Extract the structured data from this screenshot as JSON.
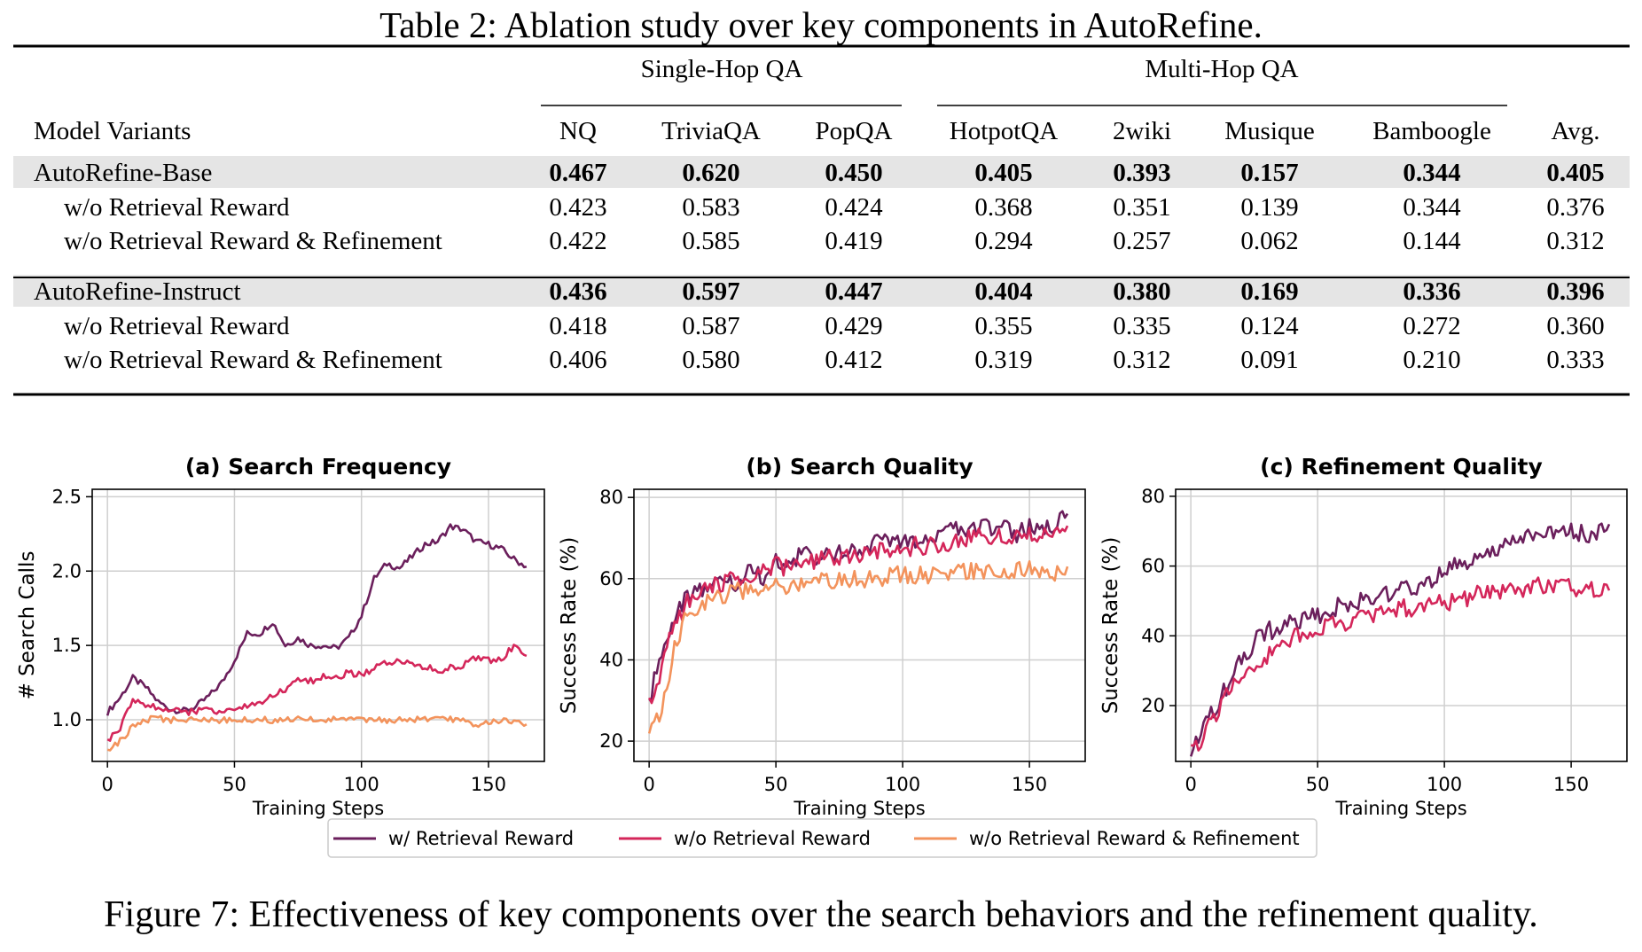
{
  "table": {
    "caption": "Table 2: Ablation study over key components in AutoRefine.",
    "group_headers": [
      "Single-Hop QA",
      "Multi-Hop QA"
    ],
    "columns": [
      "Model Variants",
      "NQ",
      "TriviaQA",
      "PopQA",
      "HotpotQA",
      "2wiki",
      "Musique",
      "Bamboogle",
      "Avg."
    ],
    "rows": [
      {
        "label": "AutoRefine-Base",
        "bold": true,
        "shaded": true,
        "indent": false,
        "values": [
          "0.467",
          "0.620",
          "0.450",
          "0.405",
          "0.393",
          "0.157",
          "0.344",
          "0.405"
        ]
      },
      {
        "label": "w/o Retrieval Reward",
        "bold": false,
        "shaded": false,
        "indent": true,
        "values": [
          "0.423",
          "0.583",
          "0.424",
          "0.368",
          "0.351",
          "0.139",
          "0.344",
          "0.376"
        ]
      },
      {
        "label": "w/o Retrieval Reward & Refinement",
        "bold": false,
        "shaded": false,
        "indent": true,
        "values": [
          "0.422",
          "0.585",
          "0.419",
          "0.294",
          "0.257",
          "0.062",
          "0.144",
          "0.312"
        ]
      },
      {
        "label": "AutoRefine-Instruct",
        "bold": true,
        "shaded": true,
        "indent": false,
        "values": [
          "0.436",
          "0.597",
          "0.447",
          "0.404",
          "0.380",
          "0.169",
          "0.336",
          "0.396"
        ]
      },
      {
        "label": "w/o Retrieval Reward",
        "bold": false,
        "shaded": false,
        "indent": true,
        "values": [
          "0.418",
          "0.587",
          "0.429",
          "0.355",
          "0.335",
          "0.124",
          "0.272",
          "0.360"
        ]
      },
      {
        "label": "w/o Retrieval Reward & Refinement",
        "bold": false,
        "shaded": false,
        "indent": true,
        "values": [
          "0.406",
          "0.580",
          "0.412",
          "0.319",
          "0.312",
          "0.091",
          "0.210",
          "0.333"
        ]
      }
    ]
  },
  "figure": {
    "caption": "Figure 7: Effectiveness of key components over the search behaviors and the refinement quality.",
    "legend": [
      "w/ Retrieval Reward",
      "w/o Retrieval Reward",
      "w/o Retrieval Reward & Refinement"
    ]
  },
  "colors": {
    "w_retrieval": "#6b1f5c",
    "wo_retrieval": "#d4265a",
    "wo_both": "#f3935c",
    "grid": "#cfcfcf",
    "shade": "#e5e5e5"
  },
  "chart_data": [
    {
      "type": "line",
      "title": "(a) Search Frequency",
      "xlabel": "Training Steps",
      "ylabel": "# Search Calls",
      "xlim": [
        -6,
        172
      ],
      "ylim": [
        0.72,
        2.55
      ],
      "xticks": [
        0,
        50,
        100,
        150
      ],
      "yticks": [
        1.0,
        1.5,
        2.0,
        2.5
      ],
      "ytick_labels": [
        "1.0",
        "1.5",
        "2.0",
        "2.5"
      ],
      "grid": true,
      "series": [
        {
          "name": "w/ Retrieval Reward",
          "x": [
            0,
            5,
            10,
            15,
            20,
            25,
            30,
            35,
            40,
            45,
            50,
            55,
            60,
            65,
            70,
            75,
            80,
            85,
            90,
            95,
            100,
            105,
            110,
            115,
            120,
            125,
            130,
            135,
            140,
            145,
            150,
            155,
            160,
            165
          ],
          "y": [
            1.05,
            1.15,
            1.28,
            1.22,
            1.12,
            1.07,
            1.06,
            1.09,
            1.16,
            1.25,
            1.4,
            1.58,
            1.58,
            1.66,
            1.5,
            1.55,
            1.5,
            1.5,
            1.48,
            1.55,
            1.7,
            1.95,
            2.05,
            2.02,
            2.1,
            2.18,
            2.2,
            2.3,
            2.28,
            2.2,
            2.18,
            2.15,
            2.08,
            2.03
          ]
        },
        {
          "name": "w/o Retrieval Reward",
          "x": [
            0,
            5,
            10,
            15,
            20,
            25,
            30,
            35,
            40,
            45,
            50,
            55,
            60,
            65,
            70,
            75,
            80,
            85,
            90,
            95,
            100,
            105,
            110,
            115,
            120,
            125,
            130,
            135,
            140,
            145,
            150,
            155,
            160,
            165
          ],
          "y": [
            0.85,
            0.95,
            1.12,
            1.1,
            1.08,
            1.07,
            1.05,
            1.06,
            1.06,
            1.06,
            1.07,
            1.09,
            1.11,
            1.16,
            1.2,
            1.26,
            1.26,
            1.29,
            1.28,
            1.32,
            1.3,
            1.35,
            1.38,
            1.4,
            1.37,
            1.36,
            1.33,
            1.35,
            1.37,
            1.42,
            1.4,
            1.4,
            1.5,
            1.43
          ]
        },
        {
          "name": "w/o Retrieval Reward & Refinement",
          "x": [
            0,
            5,
            10,
            15,
            20,
            25,
            30,
            35,
            40,
            45,
            50,
            55,
            60,
            65,
            70,
            75,
            80,
            85,
            90,
            95,
            100,
            105,
            110,
            115,
            120,
            125,
            130,
            135,
            140,
            145,
            150,
            155,
            160,
            165
          ],
          "y": [
            0.78,
            0.86,
            0.95,
            1.0,
            1.01,
            1.0,
            1.0,
            1.0,
            1.0,
            1.0,
            1.0,
            1.0,
            1.0,
            1.0,
            1.0,
            1.0,
            1.0,
            1.0,
            1.0,
            1.0,
            1.0,
            1.0,
            1.0,
            1.0,
            1.0,
            1.0,
            1.0,
            1.0,
            1.0,
            0.97,
            0.99,
            1.0,
            0.98,
            0.97
          ]
        }
      ]
    },
    {
      "type": "line",
      "title": "(b) Search Quality",
      "xlabel": "Training Steps",
      "ylabel": "Success Rate (%)",
      "xlim": [
        -6,
        172
      ],
      "ylim": [
        15,
        82
      ],
      "xticks": [
        0,
        50,
        100,
        150
      ],
      "yticks": [
        20,
        40,
        60,
        80
      ],
      "ytick_labels": [
        "20",
        "40",
        "60",
        "80"
      ],
      "grid": true,
      "series": [
        {
          "name": "w/ Retrieval Reward",
          "x": [
            0,
            5,
            10,
            15,
            20,
            25,
            30,
            35,
            40,
            45,
            50,
            55,
            60,
            65,
            70,
            75,
            80,
            85,
            90,
            95,
            100,
            105,
            110,
            115,
            120,
            125,
            130,
            135,
            140,
            145,
            150,
            155,
            160,
            165
          ],
          "y": [
            30,
            42,
            51,
            55,
            57,
            59,
            61,
            58,
            62,
            60,
            64,
            63,
            66,
            65,
            67,
            66,
            68,
            67,
            70,
            68,
            69,
            70,
            71,
            70,
            72,
            71,
            73,
            72,
            74,
            71,
            73,
            72,
            74,
            76
          ]
        },
        {
          "name": "w/o Retrieval Reward",
          "x": [
            0,
            5,
            10,
            15,
            20,
            25,
            30,
            35,
            40,
            45,
            50,
            55,
            60,
            65,
            70,
            75,
            80,
            85,
            90,
            95,
            100,
            105,
            110,
            115,
            120,
            125,
            130,
            135,
            140,
            145,
            150,
            155,
            160,
            165
          ],
          "y": [
            29,
            38,
            49,
            54,
            57,
            58,
            59,
            60,
            61,
            62,
            63,
            63,
            64,
            64,
            65,
            65,
            66,
            66,
            67,
            67,
            67,
            68,
            68,
            69,
            69,
            70,
            70,
            70,
            71,
            70,
            71,
            71,
            72,
            73
          ]
        },
        {
          "name": "w/o Retrieval Reward & Refinement",
          "x": [
            0,
            5,
            10,
            15,
            20,
            25,
            30,
            35,
            40,
            45,
            50,
            55,
            60,
            65,
            70,
            75,
            80,
            85,
            90,
            95,
            100,
            105,
            110,
            115,
            120,
            125,
            130,
            135,
            140,
            145,
            150,
            155,
            160,
            165
          ],
          "y": [
            21,
            27,
            43,
            51,
            54,
            55,
            56,
            57,
            57,
            58,
            58,
            58,
            59,
            59,
            59,
            60,
            60,
            60,
            60,
            61,
            61,
            61,
            61,
            62,
            62,
            62,
            62,
            62,
            62,
            62,
            62,
            61,
            61,
            63
          ]
        }
      ]
    },
    {
      "type": "line",
      "title": "(c) Refinement Quality",
      "xlabel": "Training Steps",
      "ylabel": "Success Rate (%)",
      "xlim": [
        -6,
        172
      ],
      "ylim": [
        4,
        82
      ],
      "xticks": [
        0,
        50,
        100,
        150
      ],
      "yticks": [
        20,
        40,
        60,
        80
      ],
      "ytick_labels": [
        "20",
        "40",
        "60",
        "80"
      ],
      "grid": true,
      "series": [
        {
          "name": "w/ Retrieval Reward",
          "x": [
            0,
            5,
            10,
            15,
            20,
            25,
            30,
            35,
            40,
            45,
            50,
            55,
            60,
            65,
            70,
            75,
            80,
            85,
            90,
            95,
            100,
            105,
            110,
            115,
            120,
            125,
            130,
            135,
            140,
            145,
            150,
            155,
            160,
            165
          ],
          "y": [
            8,
            13,
            20,
            26,
            33,
            38,
            41,
            43,
            44,
            45,
            46,
            47,
            49,
            50,
            51,
            52,
            53,
            53,
            54,
            56,
            58,
            60,
            62,
            63,
            64,
            66,
            68,
            70,
            71,
            70,
            70,
            69,
            70,
            72
          ]
        },
        {
          "name": "w/o Retrieval Reward",
          "x": [
            0,
            5,
            10,
            15,
            20,
            25,
            30,
            35,
            40,
            45,
            50,
            55,
            60,
            65,
            70,
            75,
            80,
            85,
            90,
            95,
            100,
            105,
            110,
            115,
            120,
            125,
            130,
            135,
            140,
            145,
            150,
            155,
            160,
            165
          ],
          "y": [
            7,
            11,
            18,
            24,
            29,
            32,
            34,
            37,
            39,
            41,
            42,
            43,
            44,
            45,
            46,
            46,
            47,
            48,
            48,
            49,
            50,
            50,
            51,
            52,
            52,
            53,
            53,
            54,
            54,
            54,
            54,
            53,
            53,
            53
          ]
        }
      ]
    }
  ]
}
